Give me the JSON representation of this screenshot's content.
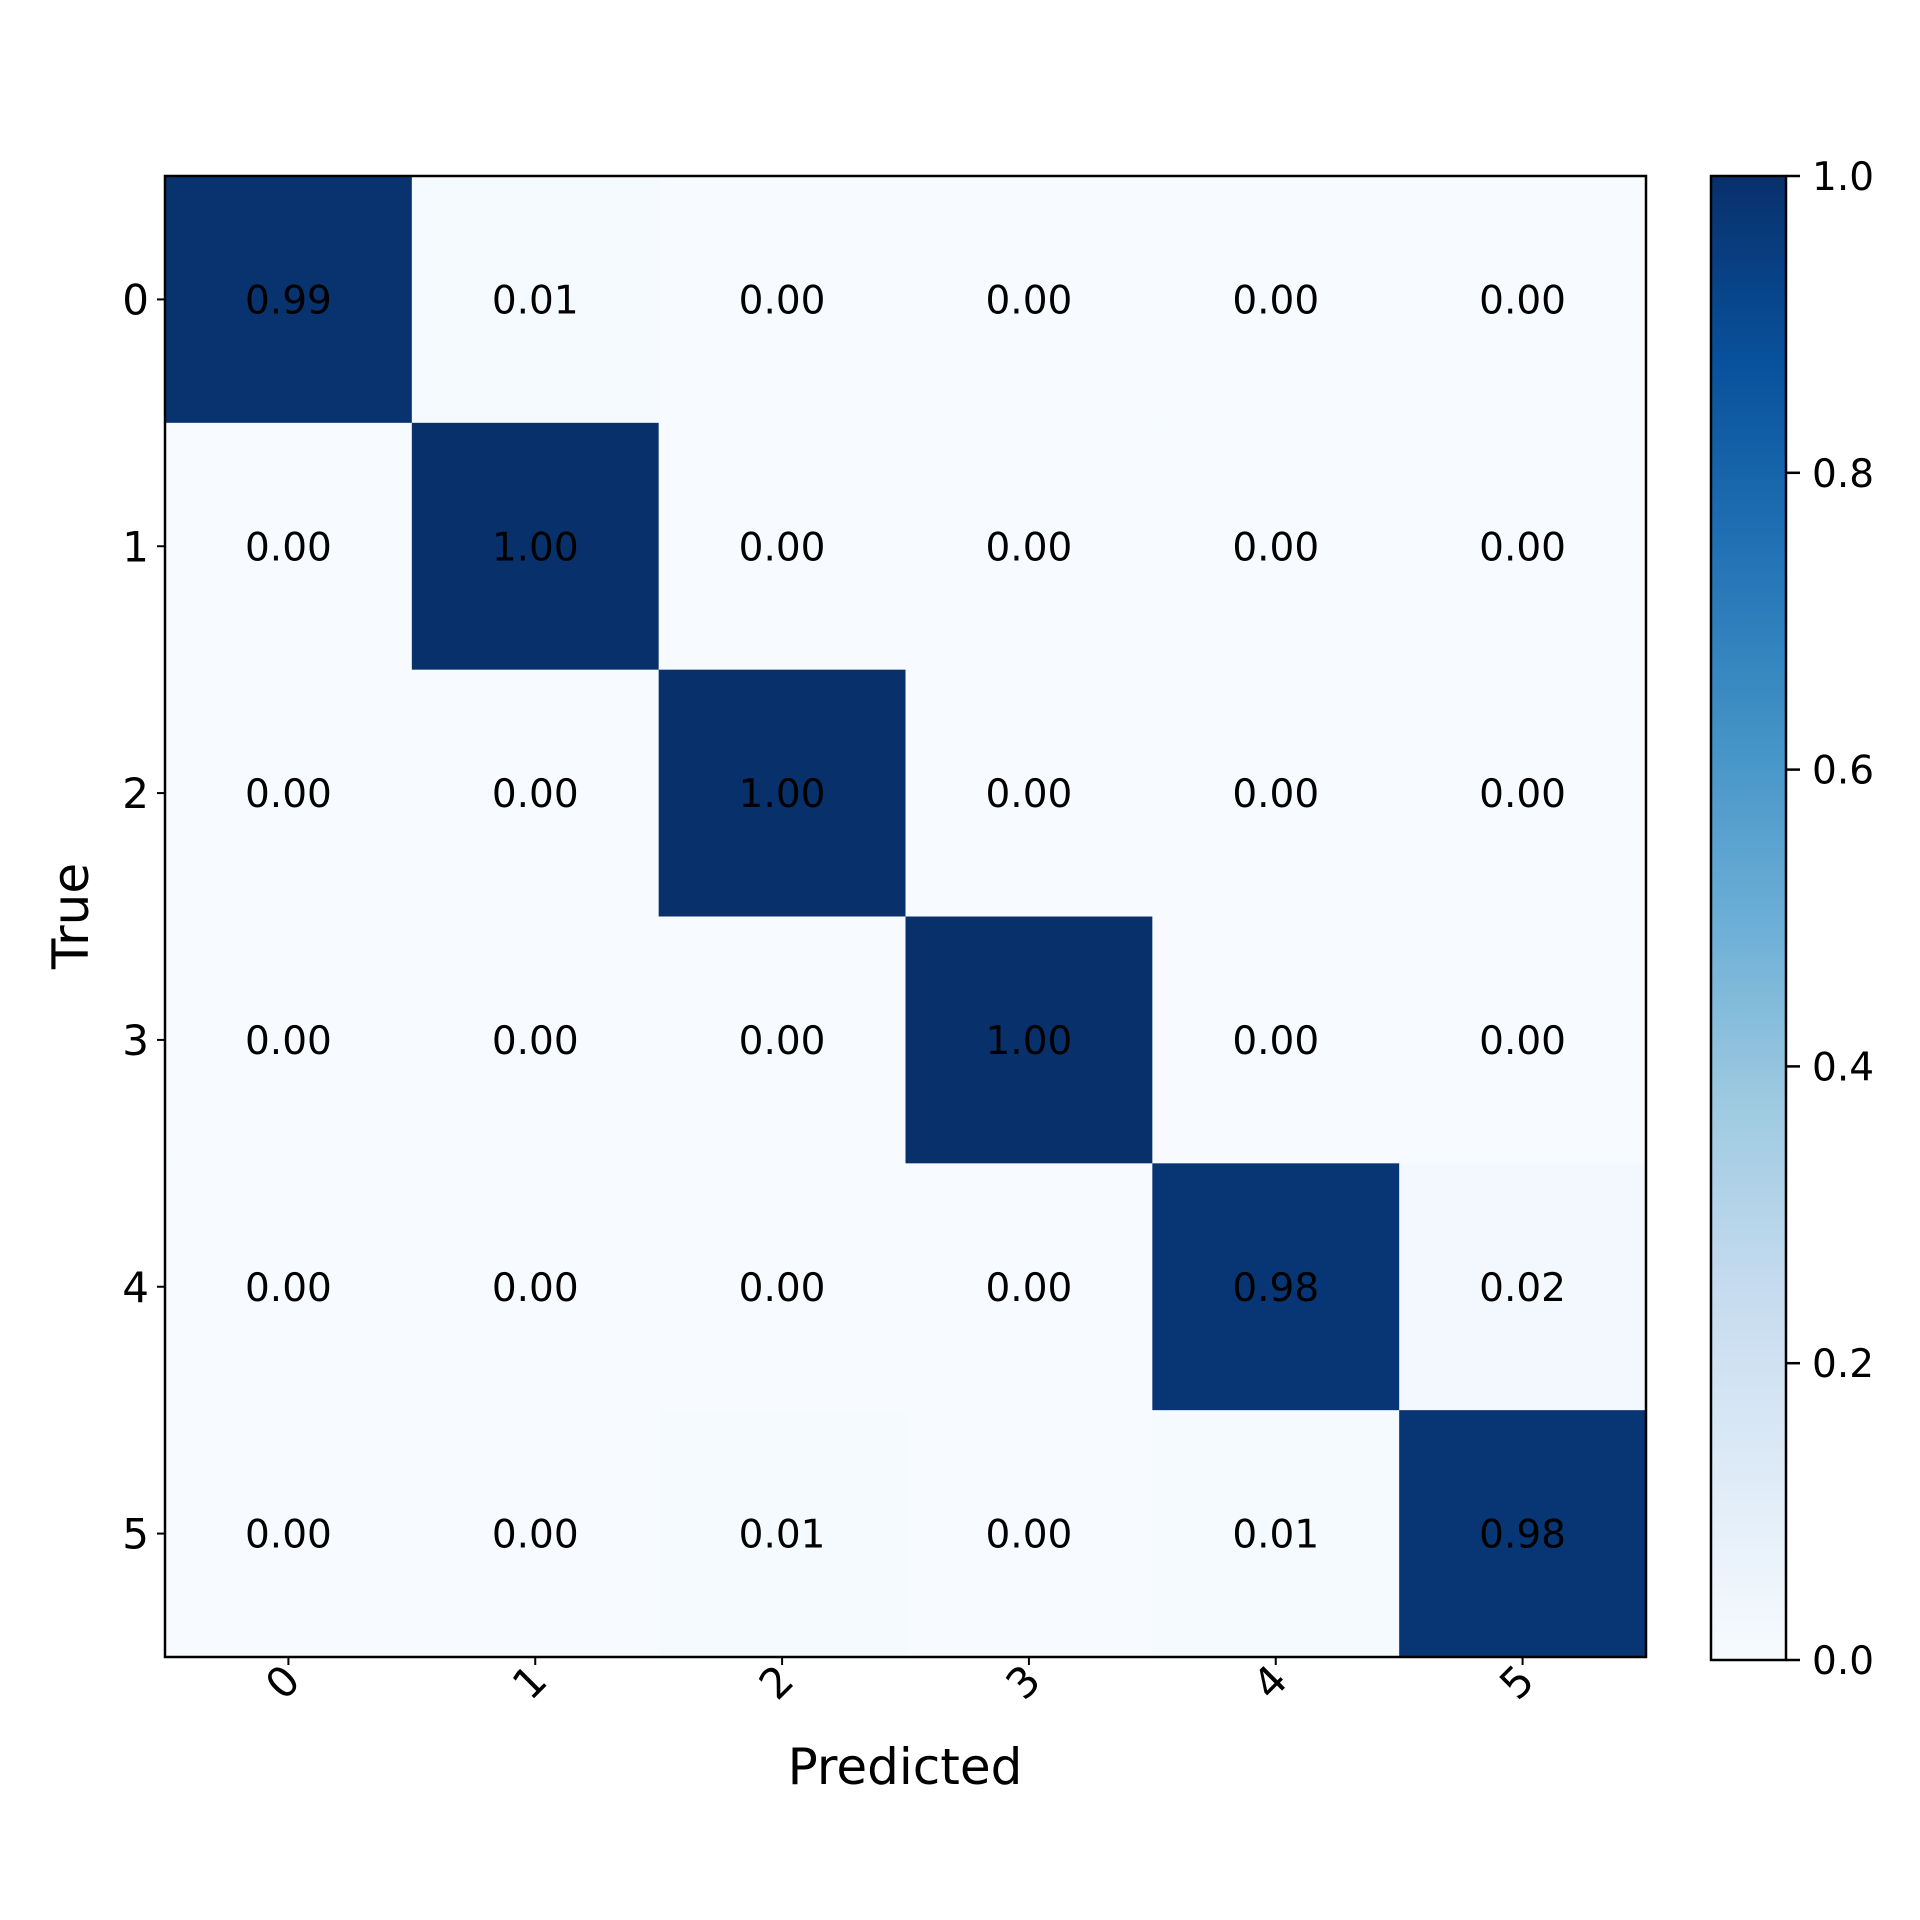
{
  "chart_data": {
    "type": "heatmap",
    "title": "",
    "xlabel": "Predicted",
    "ylabel": "True",
    "x_categories": [
      "0",
      "1",
      "2",
      "3",
      "4",
      "5"
    ],
    "y_categories": [
      "0",
      "1",
      "2",
      "3",
      "4",
      "5"
    ],
    "values": [
      [
        0.99,
        0.01,
        0.0,
        0.0,
        0.0,
        0.0
      ],
      [
        0.0,
        1.0,
        0.0,
        0.0,
        0.0,
        0.0
      ],
      [
        0.0,
        0.0,
        1.0,
        0.0,
        0.0,
        0.0
      ],
      [
        0.0,
        0.0,
        0.0,
        1.0,
        0.0,
        0.0
      ],
      [
        0.0,
        0.0,
        0.0,
        0.0,
        0.98,
        0.02
      ],
      [
        0.0,
        0.0,
        0.01,
        0.0,
        0.01,
        0.98
      ]
    ],
    "colormap": "Blues",
    "colorbar": {
      "range": [
        0.0,
        1.0
      ],
      "ticks": [
        "0.0",
        "0.2",
        "0.4",
        "0.6",
        "0.8",
        "1.0"
      ]
    },
    "x_tick_rotation_deg": 45,
    "grid": false
  }
}
